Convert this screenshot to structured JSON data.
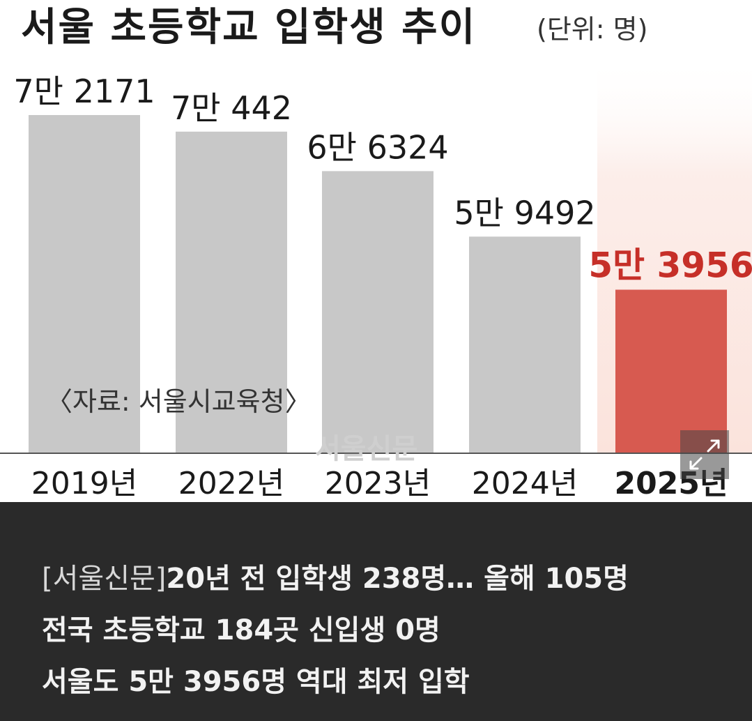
{
  "chart_data": {
    "type": "bar",
    "title": "서울 초등학교 입학생 추이",
    "unit_note": "(단위: 명)",
    "categories": [
      "2019년",
      "2022년",
      "2023년",
      "2024년",
      "2025년"
    ],
    "values": [
      72171,
      70442,
      66324,
      59492,
      53956
    ],
    "value_labels": [
      "7만 2171",
      "7만 442",
      "6만 6324",
      "5만 9492",
      "5만 3956"
    ],
    "highlight_index": 4,
    "source": "〈자료: 서울시교육청〉",
    "watermark": "서울신문",
    "colors": {
      "bar": "#c8c8c8",
      "highlight_bar": "#d75a50",
      "highlight_label": "#c62f28",
      "label": "#1a1a1a",
      "axis": "#555555"
    },
    "ylim": [
      0,
      80000
    ],
    "grid": false,
    "legend": "none"
  },
  "expand_control": {
    "icon": "expand-arrows-icon"
  },
  "caption": {
    "tag": "[서울신문]",
    "line1": "20년 전 입학생 238명… 올해 105명",
    "line2": "전국 초등학교 184곳 신입생 0명",
    "line3": "서울도 5만 3956명 역대 최저 입학"
  }
}
